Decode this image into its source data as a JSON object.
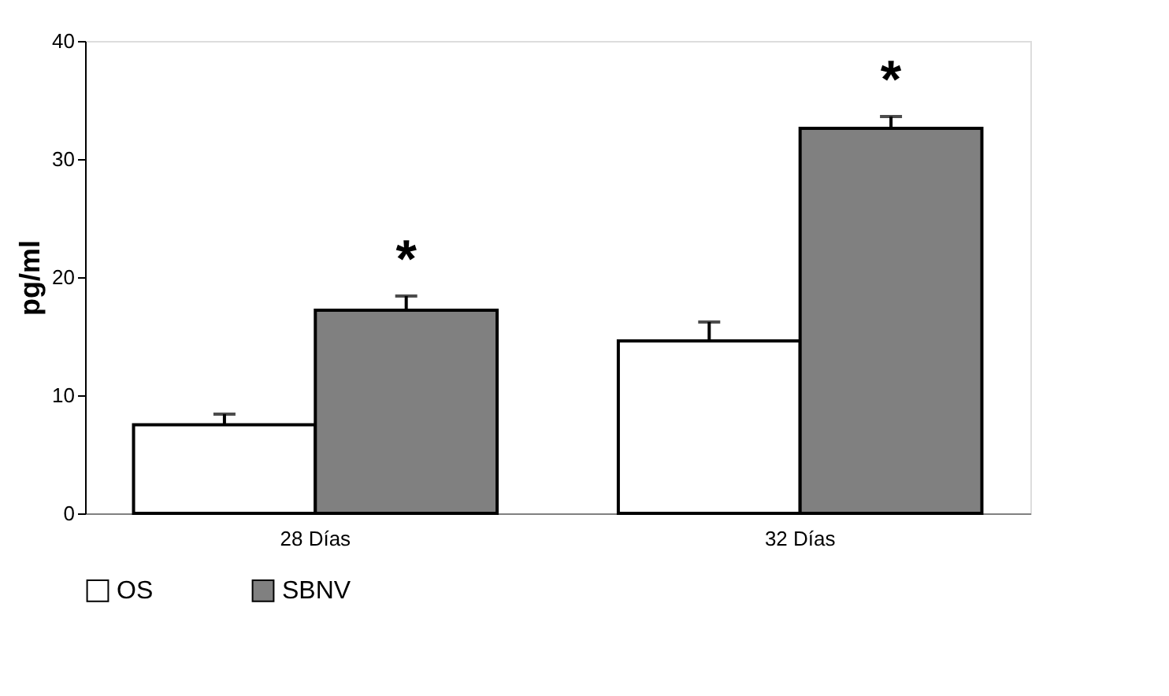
{
  "chart_data": {
    "type": "bar",
    "ylabel": "pg/ml",
    "categories": [
      "28 Días",
      "32 Días"
    ],
    "series": [
      {
        "name": "OS",
        "color": "#ffffff",
        "values": [
          7.5,
          14.6
        ],
        "errors": [
          [
            7.5,
            8.4
          ],
          [
            14.6,
            16.2
          ]
        ]
      },
      {
        "name": "SBNV",
        "color": "#808080",
        "values": [
          17.2,
          32.6
        ],
        "errors": [
          [
            17.2,
            18.4
          ],
          [
            32.6,
            33.6
          ]
        ]
      }
    ],
    "annotations": [
      "*",
      "*"
    ],
    "ylim": [
      0,
      40
    ],
    "yticks": [
      0,
      10,
      20,
      30,
      40
    ],
    "grid": false,
    "legend": "bottom"
  }
}
